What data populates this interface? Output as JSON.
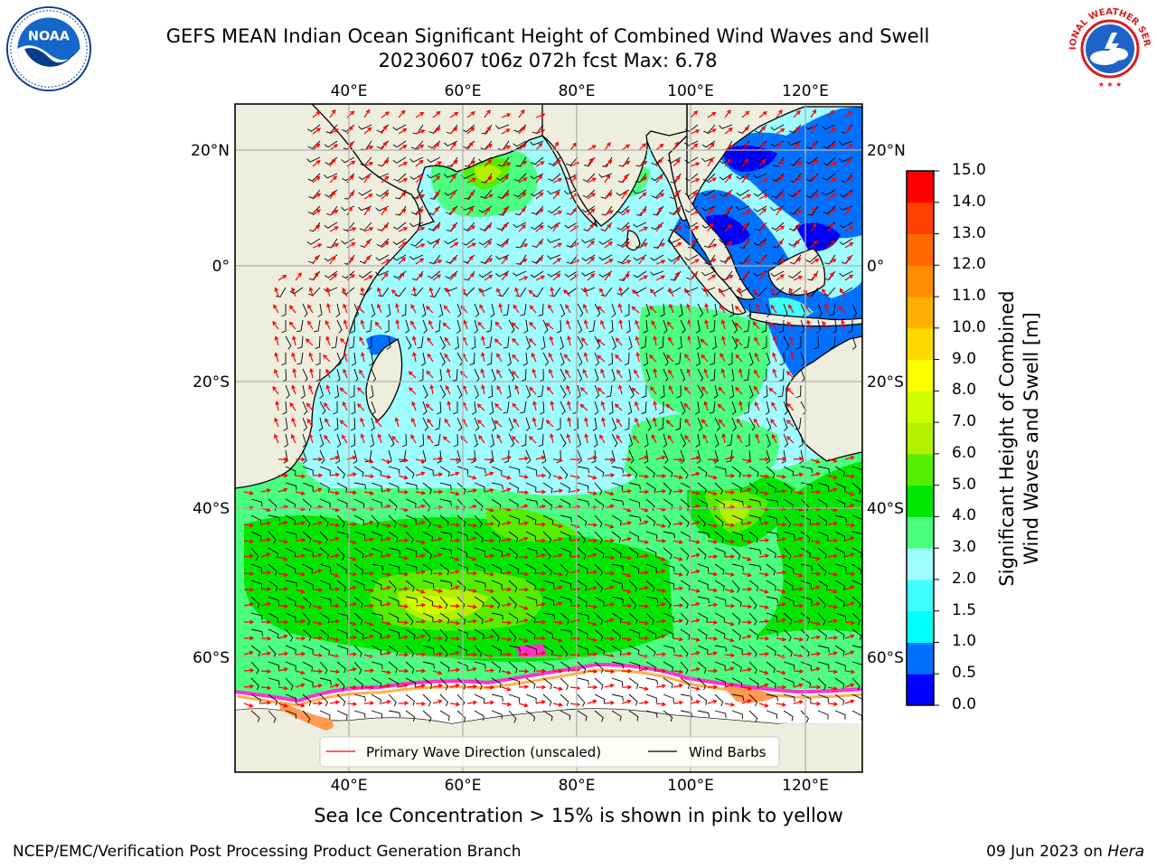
{
  "header": {
    "title_line1": "GEFS MEAN Indian Ocean Significant Height of Combined Wind Waves and Swell",
    "title_line2": "20230607 t06z 072h fcst   Max: 6.78"
  },
  "logos": {
    "left": {
      "icon": "noaa-logo-icon",
      "text": "NOAA"
    },
    "right": {
      "icon": "nws-logo-icon",
      "text": "NATIONAL WEATHER SERVICE"
    }
  },
  "map": {
    "lon_ticks": [
      "40°E",
      "60°E",
      "80°E",
      "100°E",
      "120°E"
    ],
    "lat_ticks_left": [
      "20°N",
      "0°",
      "20°S",
      "40°S",
      "60°S"
    ],
    "lat_ticks_right": [
      "20°N",
      "0°",
      "20°S",
      "40°S",
      "60°S"
    ],
    "legend": {
      "wave_direction": "Primary Wave Direction (unscaled)",
      "wind_barbs": "Wind Barbs"
    },
    "colors": {
      "land": "#eeeedf",
      "ice": "#ffffff",
      "wave_arrow": "#ff0000",
      "wind_barb": "#000000"
    }
  },
  "colorbar": {
    "title_line1": "Significant Height of Combined",
    "title_line2": "Wind Waves and Swell [m]",
    "ticks": [
      "0.0",
      "0.5",
      "1.0",
      "1.5",
      "2.0",
      "3.0",
      "4.0",
      "5.0",
      "6.0",
      "7.0",
      "8.0",
      "9.0",
      "10.0",
      "11.0",
      "12.0",
      "13.0",
      "14.0",
      "15.0"
    ],
    "colors": [
      "#0000ff",
      "#0070ff",
      "#00ffff",
      "#40ffff",
      "#9ffcff",
      "#4cff80",
      "#00e600",
      "#55ee00",
      "#b3f000",
      "#cfff00",
      "#ffff00",
      "#ffd900",
      "#ffb000",
      "#ff8c00",
      "#ff6a00",
      "#ff4000",
      "#ff0000"
    ]
  },
  "footer": {
    "note": "Sea Ice Concentration > 15% is shown in pink to yellow",
    "credit_left": "NCEP/EMC/Verification Post Processing Product Generation Branch",
    "credit_right_date": "09 Jun 2023 on",
    "credit_right_host": "Hera"
  }
}
